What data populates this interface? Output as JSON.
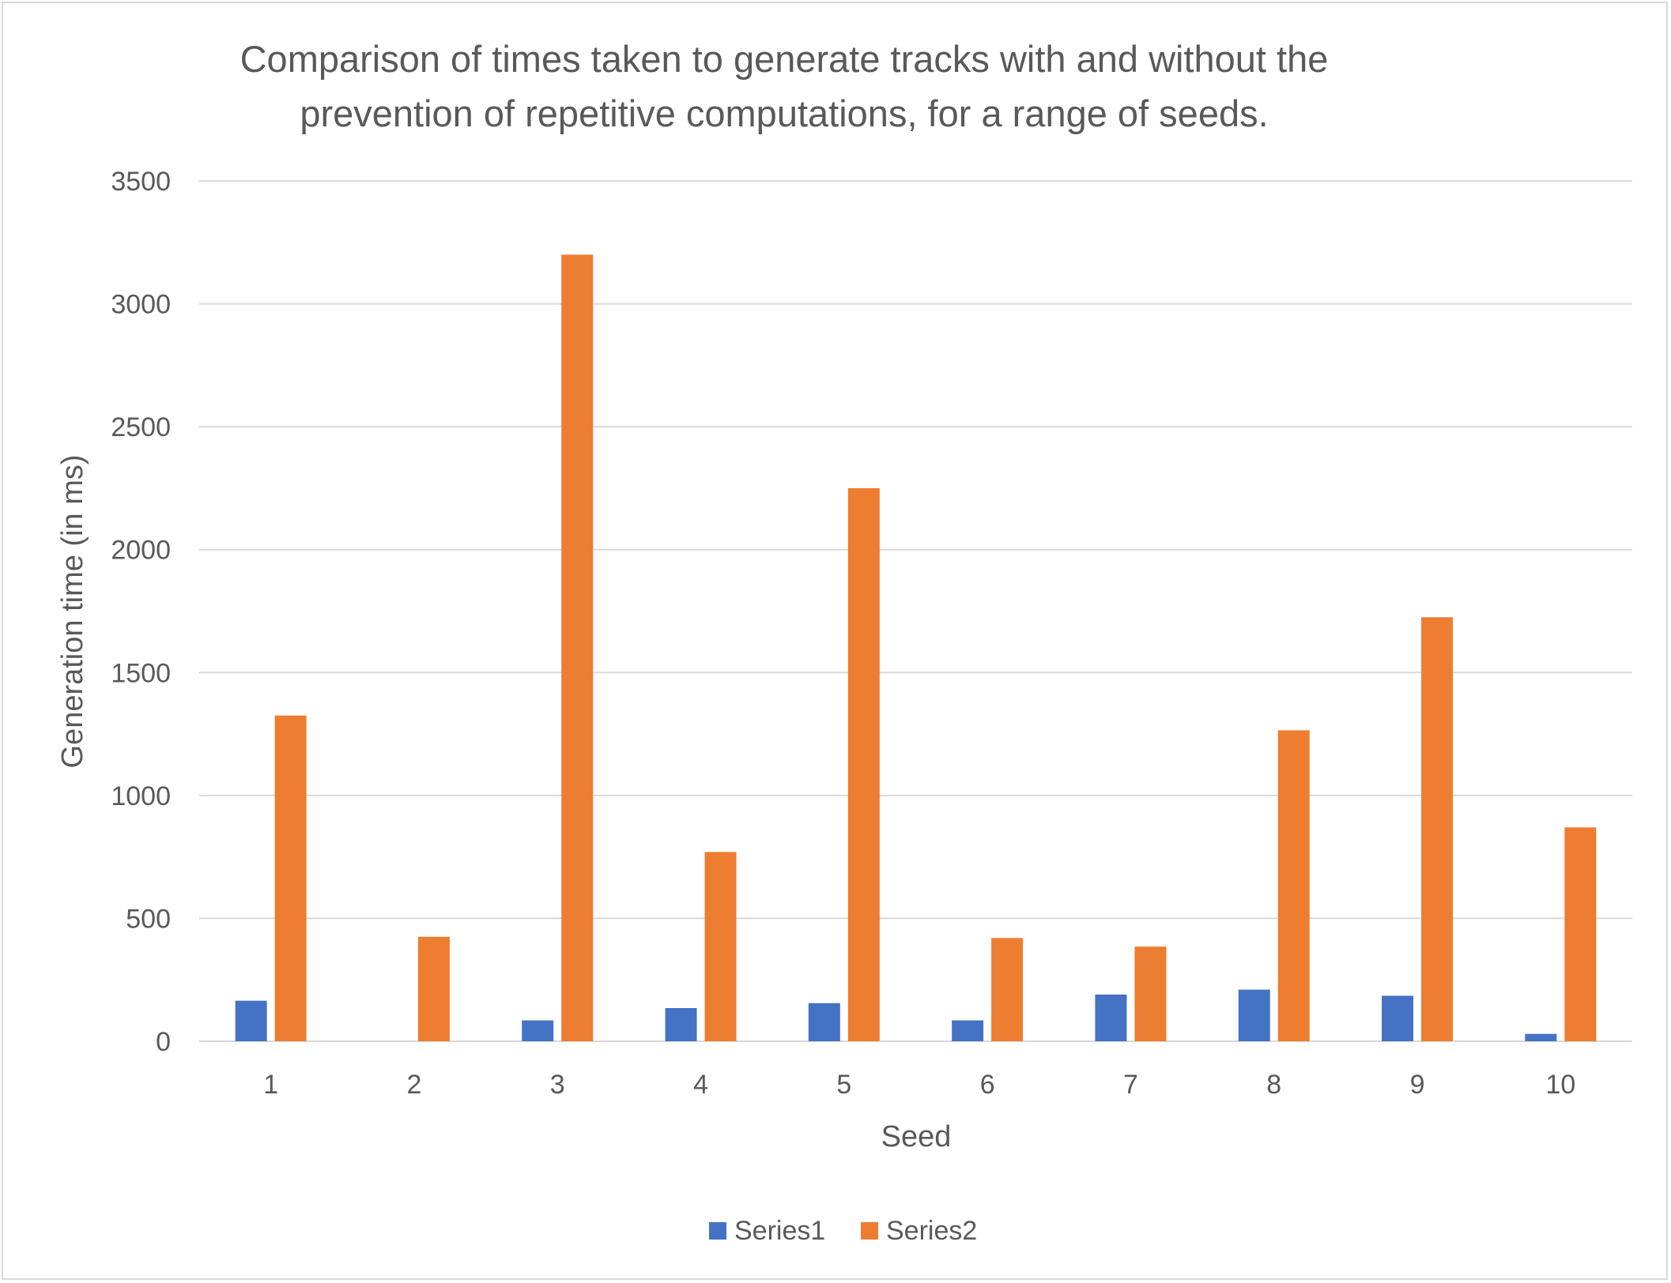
{
  "chart_data": {
    "type": "bar",
    "title_lines": [
      "Comparison of times taken to generate tracks with and without the",
      "prevention of repetitive computations, for a range of seeds."
    ],
    "xlabel": "Seed",
    "ylabel": "Generation time (in ms)",
    "ylim": [
      0,
      3500
    ],
    "yticks": [
      "0",
      "500",
      "1000",
      "1500",
      "2000",
      "2500",
      "3000",
      "3500"
    ],
    "categories": [
      "1",
      "2",
      "3",
      "4",
      "5",
      "6",
      "7",
      "8",
      "9",
      "10"
    ],
    "series": [
      {
        "name": "Series1",
        "color": "#4472C4",
        "values": [
          165,
          0,
          85,
          135,
          155,
          85,
          190,
          210,
          185,
          30
        ]
      },
      {
        "name": "Series2",
        "color": "#ED7D31",
        "values": [
          1325,
          425,
          3200,
          770,
          2250,
          420,
          385,
          1265,
          1725,
          870
        ]
      }
    ],
    "grid": true,
    "legend_position": "bottom"
  }
}
